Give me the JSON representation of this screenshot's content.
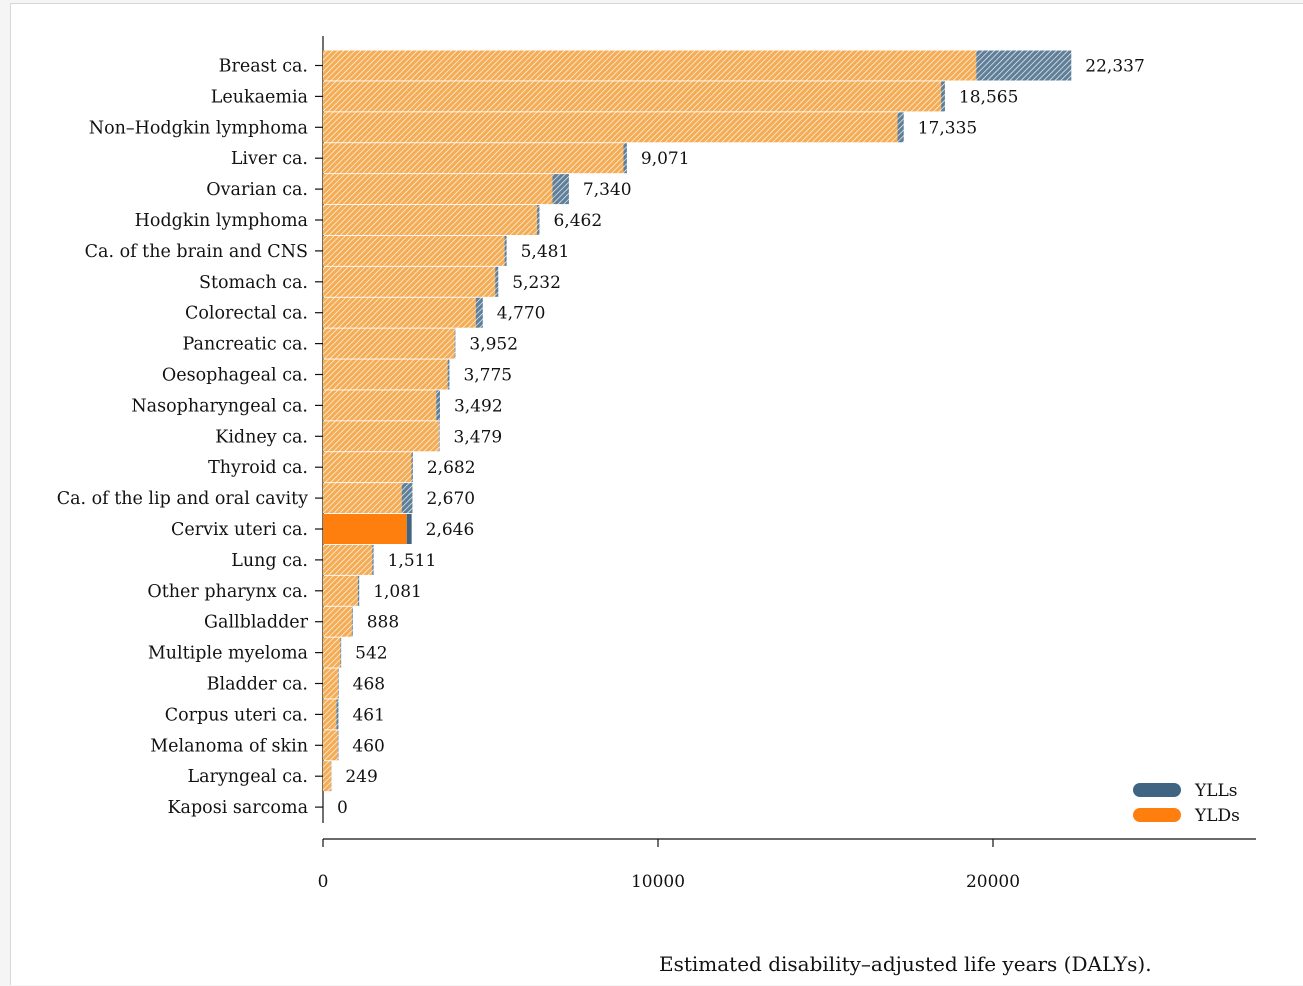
{
  "chart_data": {
    "type": "bar",
    "orientation": "horizontal",
    "stacked": true,
    "title": "",
    "xlabel": "Estimated disability–adjusted life years (DALYs).",
    "ylabel": "",
    "xlim": [
      0,
      28000
    ],
    "xticks": [
      0,
      10000,
      20000
    ],
    "categories": [
      "Breast ca.",
      "Leukaemia",
      "Non–Hodgkin lymphoma",
      "Liver ca.",
      "Ovarian ca.",
      "Hodgkin lymphoma",
      "Ca. of the brain and CNS",
      "Stomach ca.",
      "Colorectal ca.",
      "Pancreatic ca.",
      "Oesophageal ca.",
      "Nasopharyngeal ca.",
      "Kidney ca.",
      "Thyroid ca.",
      "Ca. of the lip and oral cavity",
      "Cervix uteri ca.",
      "Lung ca.",
      "Other pharynx ca.",
      "Gallbladder",
      "Multiple myeloma",
      "Bladder ca.",
      "Corpus uteri ca.",
      "Melanoma of skin",
      "Laryngeal ca.",
      "Kaposi sarcoma"
    ],
    "series": [
      {
        "name": "YLDs",
        "color": "#ff7f0e",
        "values": [
          19500,
          18450,
          17150,
          8970,
          6850,
          6390,
          5420,
          5140,
          4560,
          3930,
          3720,
          3380,
          3460,
          2640,
          2350,
          2500,
          1470,
          1040,
          860,
          520,
          450,
          400,
          440,
          240,
          0
        ]
      },
      {
        "name": "YLLs",
        "color": "#3f6583",
        "values": [
          2837,
          115,
          185,
          101,
          490,
          72,
          61,
          92,
          210,
          22,
          55,
          112,
          19,
          42,
          320,
          146,
          41,
          41,
          28,
          22,
          18,
          61,
          20,
          9,
          0
        ]
      }
    ],
    "totals": [
      22337,
      18565,
      17335,
      9071,
      7340,
      6462,
      5481,
      5232,
      4770,
      3952,
      3775,
      3492,
      3479,
      2682,
      2670,
      2646,
      1511,
      1081,
      888,
      542,
      468,
      461,
      460,
      249,
      0
    ],
    "total_labels": [
      "22,337",
      "18,565",
      "17,335",
      "9,071",
      "7,340",
      "6,462",
      "5,481",
      "5,232",
      "4,770",
      "3,952",
      "3,775",
      "3,492",
      "3,479",
      "2,682",
      "2,670",
      "2,646",
      "1,511",
      "1,081",
      "888",
      "542",
      "468",
      "461",
      "460",
      "249",
      "0"
    ],
    "highlight_category": "Cervix uteri ca.",
    "legend": {
      "position": "bottom-right",
      "entries": [
        "YLLs",
        "YLDs"
      ]
    },
    "grid": false
  },
  "colors": {
    "yld_faded": "#f5b96e",
    "yld_stripe": "#ffffff",
    "yll_faded": "#7c98ad",
    "yll_stripe": "#ffffff"
  }
}
